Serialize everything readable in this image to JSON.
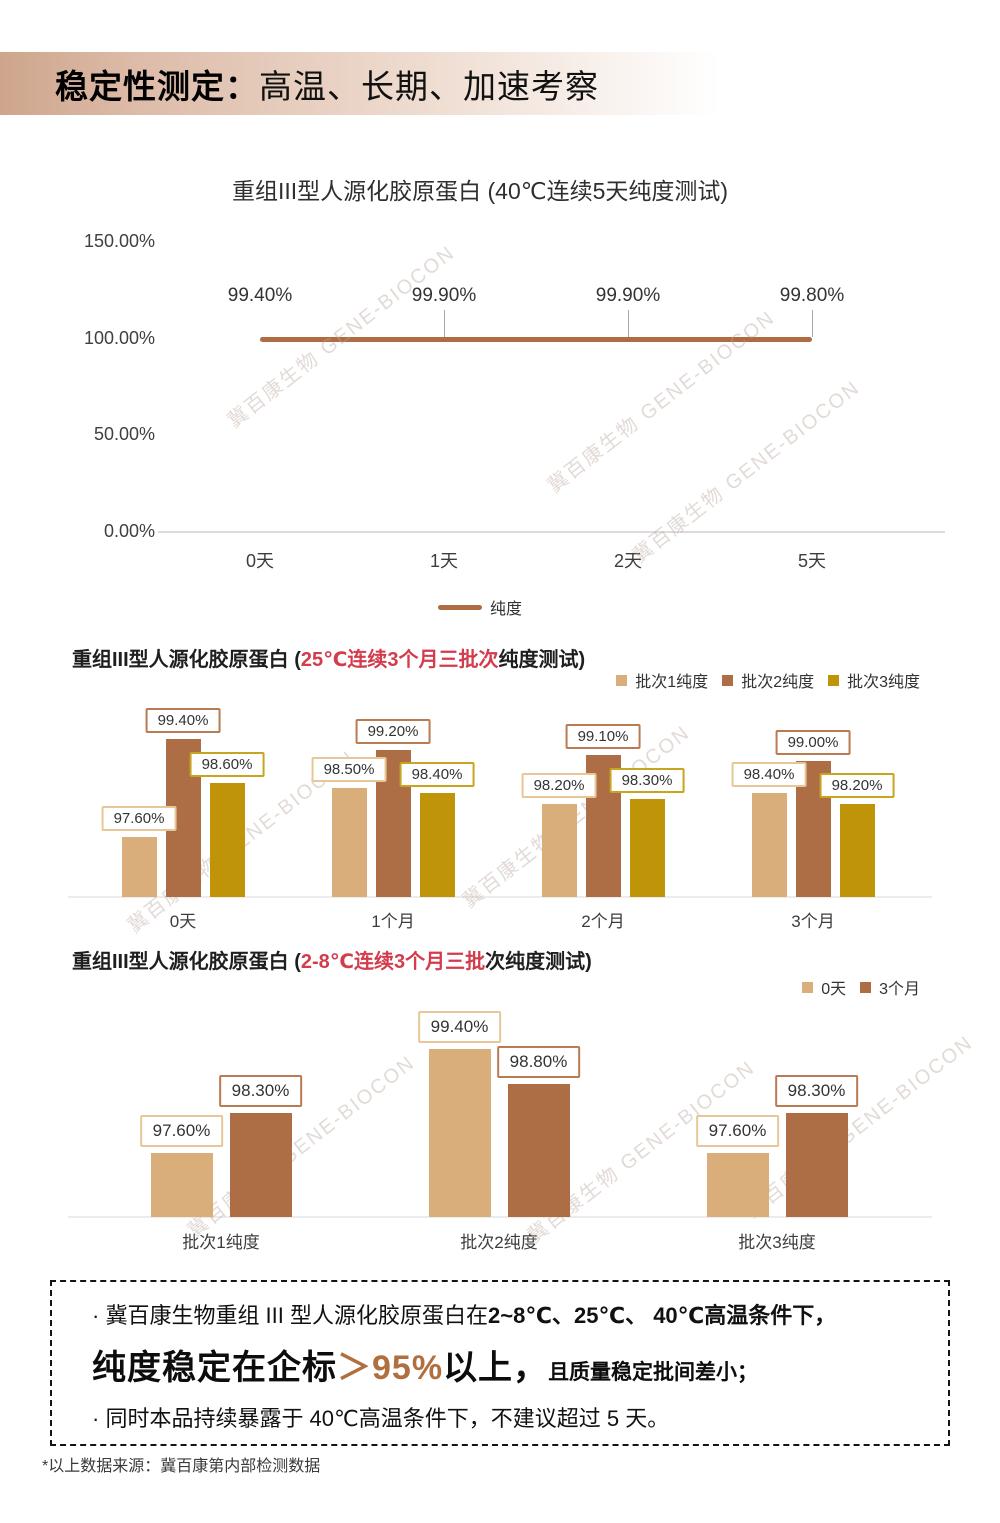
{
  "header": {
    "title_strong": "稳定性测定：",
    "title_rest": "高温、长期、加速考察"
  },
  "watermark_text": "冀百康生物 GENE-BIOCON",
  "footnote": "*以上数据来源：冀百康第内部检测数据",
  "colors": {
    "series1_tan": "#D9AE7B",
    "series2_brown": "#AD6E45",
    "series3_gold": "#C09409",
    "line_brown": "#AF6B42",
    "title_red": "#D23C4C",
    "accent_brown": "#B06F3E",
    "header_gradient_start": "#CEA58C"
  },
  "chart_data": [
    {
      "type": "line",
      "title": "重组III型人源化胶原蛋白 (40℃连续5天纯度测试)",
      "categories": [
        "0天",
        "1天",
        "2天",
        "5天"
      ],
      "series": [
        {
          "name": "纯度",
          "color": "#AF6B42",
          "values": [
            99.4,
            99.9,
            99.9,
            99.8
          ],
          "labels": [
            "99.40%",
            "99.90%",
            "99.90%",
            "99.80%"
          ]
        }
      ],
      "yticks": [
        {
          "v": 150,
          "label": "150.00%"
        },
        {
          "v": 100,
          "label": "100.00%"
        },
        {
          "v": 50,
          "label": "50.00%"
        },
        {
          "v": 0,
          "label": "0.00%"
        }
      ],
      "ylim": [
        0,
        150
      ],
      "grid": false,
      "legend_position": "bottom-center"
    },
    {
      "type": "bar",
      "title_prefix": "重组III型人源化胶原蛋白 (",
      "title_red": "25℃连续3个月三批次",
      "title_suffix": "纯度测试)",
      "categories": [
        "0天",
        "1个月",
        "2个月",
        "3个月"
      ],
      "series": [
        {
          "name": "批次1纯度",
          "color": "#D9AE7B",
          "border": "#E7C795",
          "values": [
            97.6,
            98.5,
            98.2,
            98.4
          ],
          "labels": [
            "97.60%",
            "98.50%",
            "98.20%",
            "98.40%"
          ]
        },
        {
          "name": "批次2纯度",
          "color": "#AD6E45",
          "border": "#B87B52",
          "values": [
            99.4,
            99.2,
            99.1,
            99.0
          ],
          "labels": [
            "99.40%",
            "99.20%",
            "99.10%",
            "99.00%"
          ]
        },
        {
          "name": "批次3纯度",
          "color": "#C09409",
          "border": "#C9A41F",
          "values": [
            98.6,
            98.4,
            98.3,
            98.2
          ],
          "labels": [
            "98.60%",
            "98.40%",
            "98.30%",
            "98.20%"
          ]
        }
      ],
      "ylim": [
        96.5,
        100
      ],
      "grid": false,
      "legend_position": "top-right"
    },
    {
      "type": "bar",
      "title_prefix": "重组III型人源化胶原蛋白 (",
      "title_red": "2-8℃连续3个月三批",
      "title_suffix": "次纯度测试)",
      "categories": [
        "批次1纯度",
        "批次2纯度",
        "批次3纯度"
      ],
      "series": [
        {
          "name": "0天",
          "color": "#D9AE7B",
          "border": "#E7C795",
          "values": [
            97.6,
            99.4,
            97.6
          ],
          "labels": [
            "97.60%",
            "99.40%",
            "97.60%"
          ]
        },
        {
          "name": "3个月",
          "color": "#AD6E45",
          "border": "#B87B52",
          "values": [
            98.3,
            98.8,
            98.3
          ],
          "labels": [
            "98.30%",
            "98.80%",
            "98.30%"
          ]
        }
      ],
      "ylim": [
        96.5,
        100
      ],
      "grid": false,
      "legend_position": "top-right"
    }
  ],
  "conclusion": {
    "line1_normal": "· 冀百康生物重组 III 型人源化胶原蛋白在",
    "line1_bold": "2~8℃、25℃、 40℃高温条件下，",
    "line2_big1": "纯度稳定在企标",
    "line2_accent": "＞95%",
    "line2_big2": "以上，",
    "line2_small": "且质量稳定批间差小；",
    "line3": "· 同时本品持续暴露于 40℃高温条件下，不建议超过 5 天。"
  }
}
